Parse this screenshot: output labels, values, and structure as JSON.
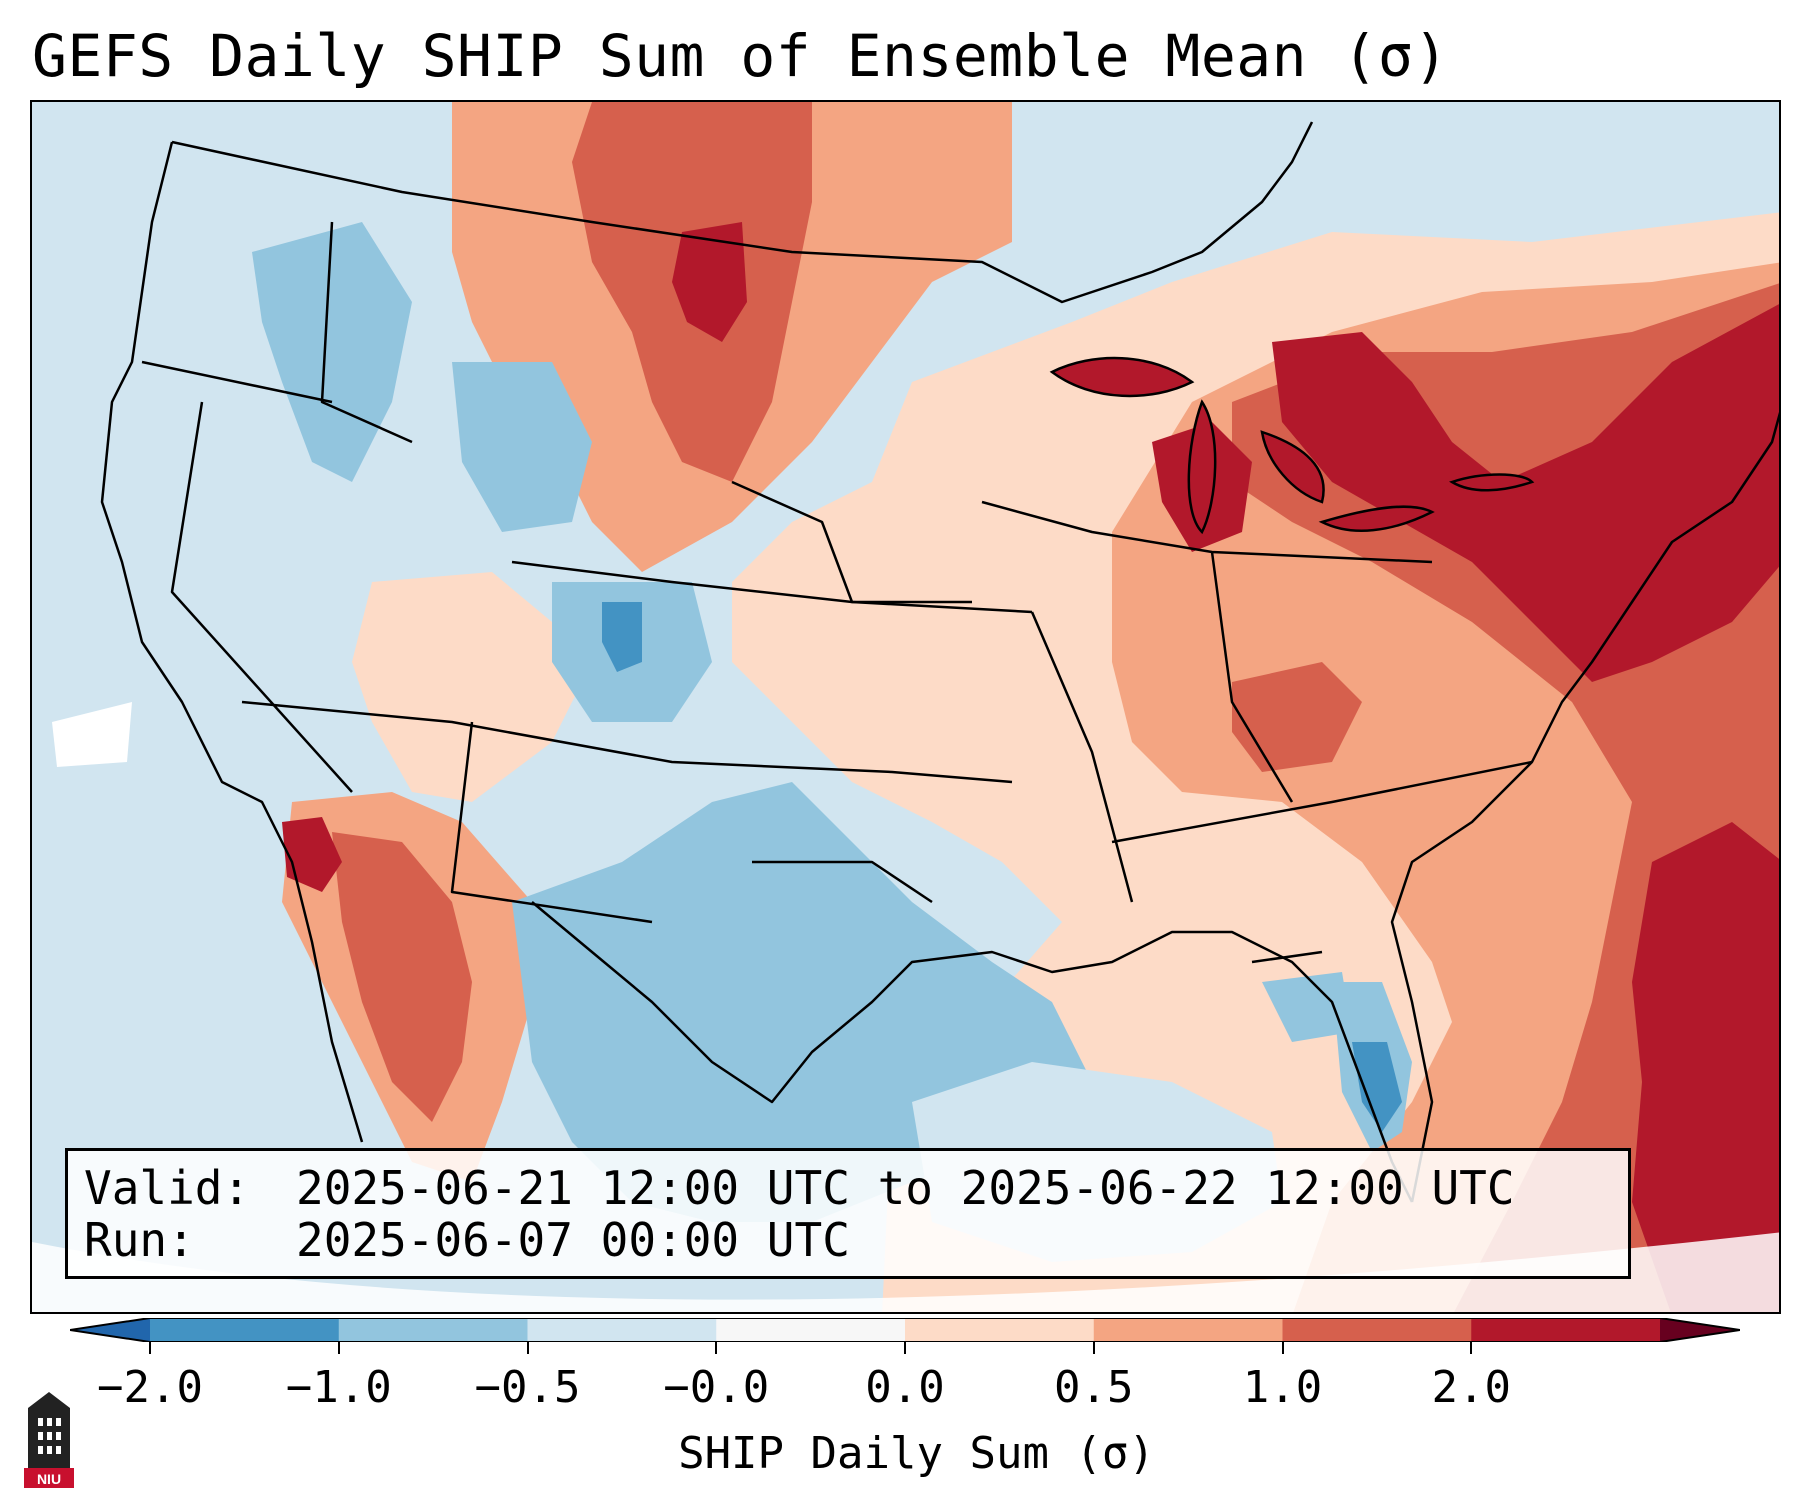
{
  "title": "GEFS Daily SHIP Sum of Ensemble Mean (σ)",
  "info": {
    "valid_label": "Valid:",
    "valid_value": "2025-06-21 12:00 UTC to 2025-06-22 12:00 UTC",
    "run_label": "Run:",
    "run_value": "2025-06-07 00:00 UTC"
  },
  "colorbar": {
    "title": "SHIP Daily Sum (σ)",
    "ticks": [
      "−2.0",
      "−1.0",
      "−0.5",
      "−0.0",
      "0.0",
      "0.5",
      "1.0",
      "2.0"
    ],
    "colors": [
      "#4393c3",
      "#92c5de",
      "#d1e5f0",
      "#f7f7f7",
      "#fddbc7",
      "#f4a582",
      "#d6604d",
      "#b2182b"
    ],
    "under_color": "#2166ac",
    "over_color": "#67001f"
  },
  "logo": {
    "text": "NIU"
  },
  "icons": {
    "logo": "niu-tower-logo-icon"
  }
}
